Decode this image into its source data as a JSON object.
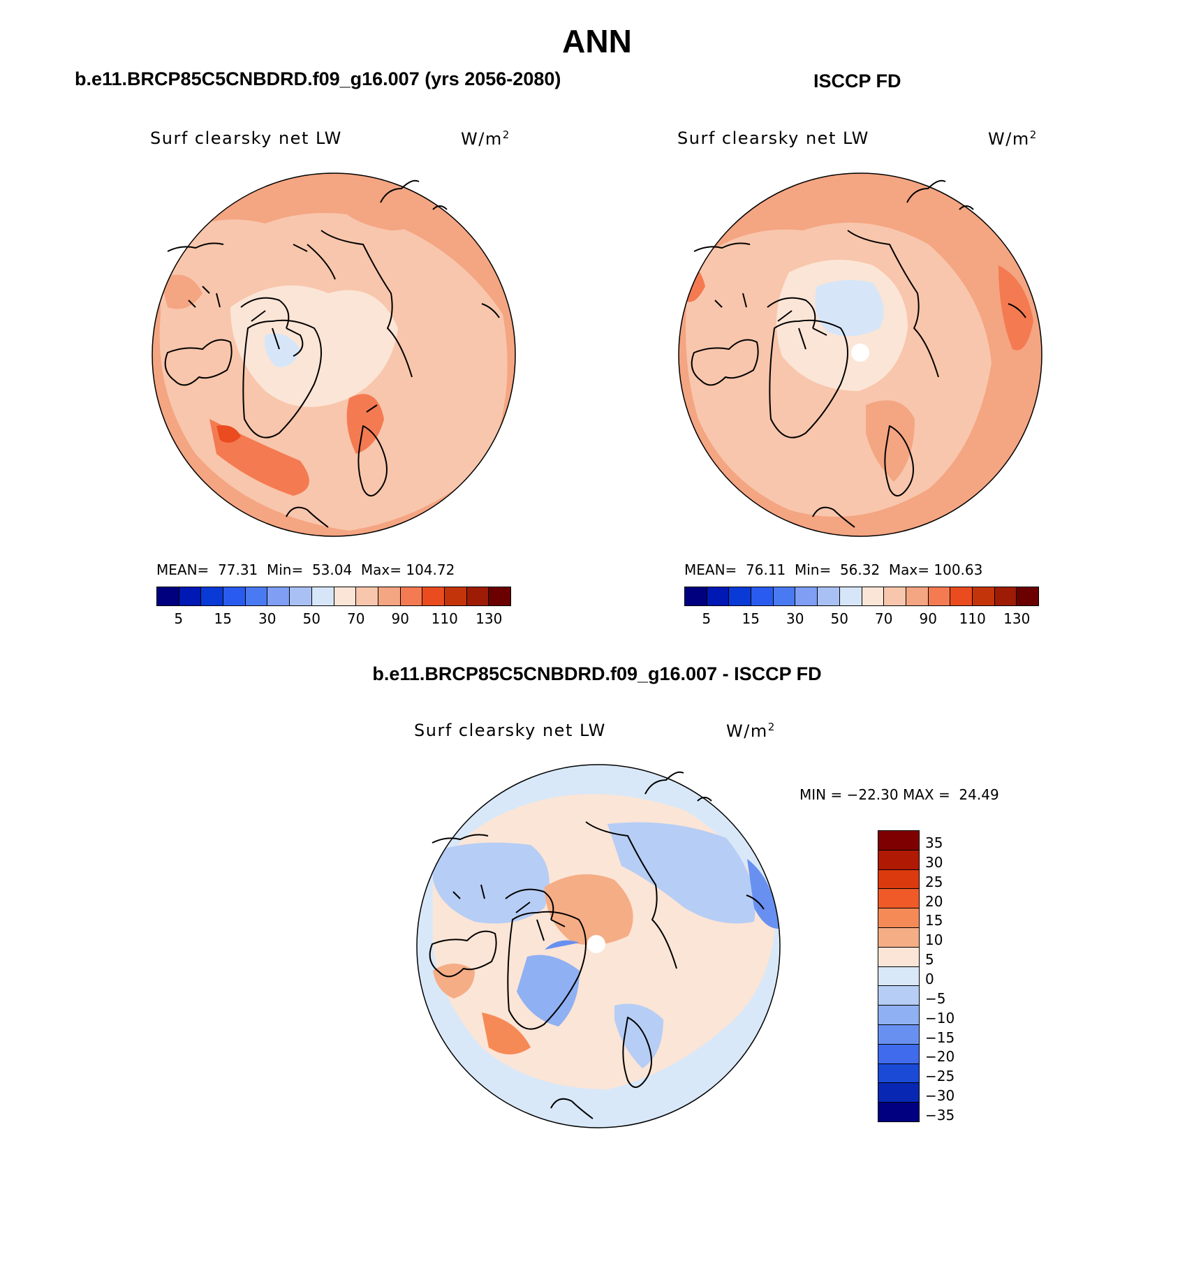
{
  "title": "ANN",
  "panels": [
    {
      "case": "b.e11.BRCP85C5CNBDRD.f09_g16.007 (yrs 2056-2080)",
      "variable": "Surf clearsky net LW",
      "units": "W/m",
      "units_exp": "2",
      "stats": "MEAN=  77.31  Min=  53.04  Max= 104.72"
    },
    {
      "case": "ISCCP FD",
      "variable": "Surf clearsky net LW",
      "units": "W/m",
      "units_exp": "2",
      "stats": "MEAN=  76.11  Min=  56.32  Max= 100.63"
    }
  ],
  "diff": {
    "title": "b.e11.BRCP85C5CNBDRD.f09_g16.007 - ISCCP FD",
    "variable": "Surf clearsky net LW",
    "units": "W/m",
    "units_exp": "2",
    "minmax": "MIN = −22.30 MAX =  24.49"
  },
  "colorbar_abs": {
    "colors": [
      "#00007f",
      "#0018b4",
      "#0a3ad6",
      "#2a5bef",
      "#4a7af2",
      "#7f9ef4",
      "#a9c0f4",
      "#d6e6f8",
      "#fbe5d6",
      "#f8c6ac",
      "#f4a582",
      "#f47a52",
      "#ea4c1f",
      "#c4340a",
      "#9e1c05",
      "#6b0000"
    ],
    "labels": [
      "5",
      "15",
      "30",
      "50",
      "70",
      "90",
      "110",
      "130"
    ]
  },
  "colorbar_diff": {
    "colors": [
      "#7f0000",
      "#b01a05",
      "#db3a0f",
      "#ef5a28",
      "#f68a57",
      "#f5ad86",
      "#fbe5d6",
      "#d8e8f8",
      "#b6cdf5",
      "#8fb0f3",
      "#6890f0",
      "#3f6bec",
      "#1a4ad6",
      "#0828b3",
      "#000080"
    ],
    "labels": [
      "35",
      "30",
      "25",
      "20",
      "15",
      "10",
      "5",
      "0",
      "−5",
      "−10",
      "−15",
      "−20",
      "−25",
      "−30",
      "−35"
    ]
  }
}
